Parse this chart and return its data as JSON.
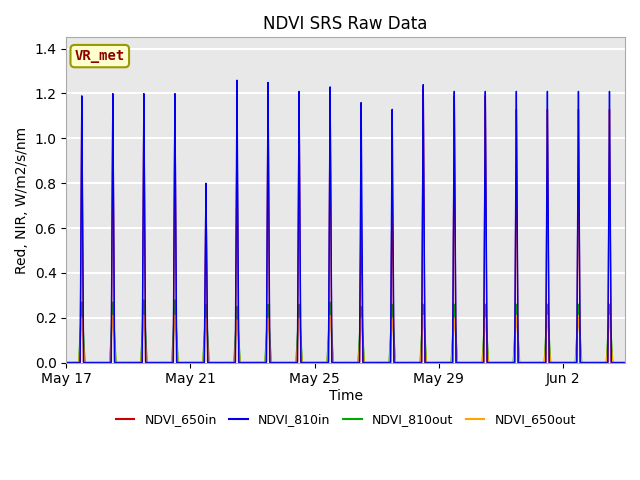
{
  "title": "NDVI SRS Raw Data",
  "xlabel": "Time",
  "ylabel": "Red, NIR, W/m2/s/nm",
  "ylim": [
    0.0,
    1.45
  ],
  "yticks": [
    0.0,
    0.2,
    0.4,
    0.6,
    0.8,
    1.0,
    1.2,
    1.4
  ],
  "annotation_text": "VR_met",
  "annotation_color": "#8B0000",
  "annotation_bg": "#FFFFCC",
  "annotation_border": "#999900",
  "legend_entries": [
    {
      "label": "NDVI_650in",
      "color": "#CC0000"
    },
    {
      "label": "NDVI_810in",
      "color": "#0000EE"
    },
    {
      "label": "NDVI_810out",
      "color": "#00AA00"
    },
    {
      "label": "NDVI_650out",
      "color": "#FFA500"
    }
  ],
  "fig_bg": "#FFFFFF",
  "axes_bg": "#E8E8E8",
  "spike_centers": [
    0.5,
    1.5,
    2.5,
    3.5,
    4.5,
    5.5,
    6.5,
    7.5,
    8.5,
    9.5,
    10.5,
    11.5,
    12.5,
    13.5,
    14.5,
    15.5,
    16.5,
    17.5
  ],
  "n810in_peaks": [
    1.19,
    1.2,
    1.2,
    1.2,
    0.8,
    1.26,
    1.25,
    1.21,
    1.23,
    1.16,
    1.13,
    1.24,
    1.21,
    1.21,
    1.21,
    1.21,
    1.21,
    1.21
  ],
  "n650in_peaks": [
    1.15,
    1.18,
    1.18,
    1.18,
    0.78,
    1.06,
    1.22,
    1.19,
    1.2,
    0.75,
    0.89,
    1.22,
    1.19,
    1.19,
    1.13,
    1.13,
    1.13,
    1.13
  ],
  "n810out_peaks": [
    0.27,
    0.27,
    0.28,
    0.28,
    0.26,
    0.25,
    0.26,
    0.26,
    0.27,
    0.25,
    0.26,
    0.26,
    0.26,
    0.26,
    0.26,
    0.26,
    0.26,
    0.26
  ],
  "n650out_peaks": [
    0.2,
    0.21,
    0.21,
    0.21,
    0.2,
    0.19,
    0.2,
    0.2,
    0.21,
    0.2,
    0.2,
    0.21,
    0.2,
    0.2,
    0.21,
    0.21,
    0.21,
    0.21
  ],
  "xtick_pos": [
    0,
    4,
    8,
    12,
    16
  ],
  "xtick_labels": [
    "May 17",
    "May 21",
    "May 25",
    "May 29",
    "Jun 2"
  ],
  "xlim": [
    0,
    18
  ],
  "figsize": [
    6.4,
    4.8
  ],
  "dpi": 100
}
